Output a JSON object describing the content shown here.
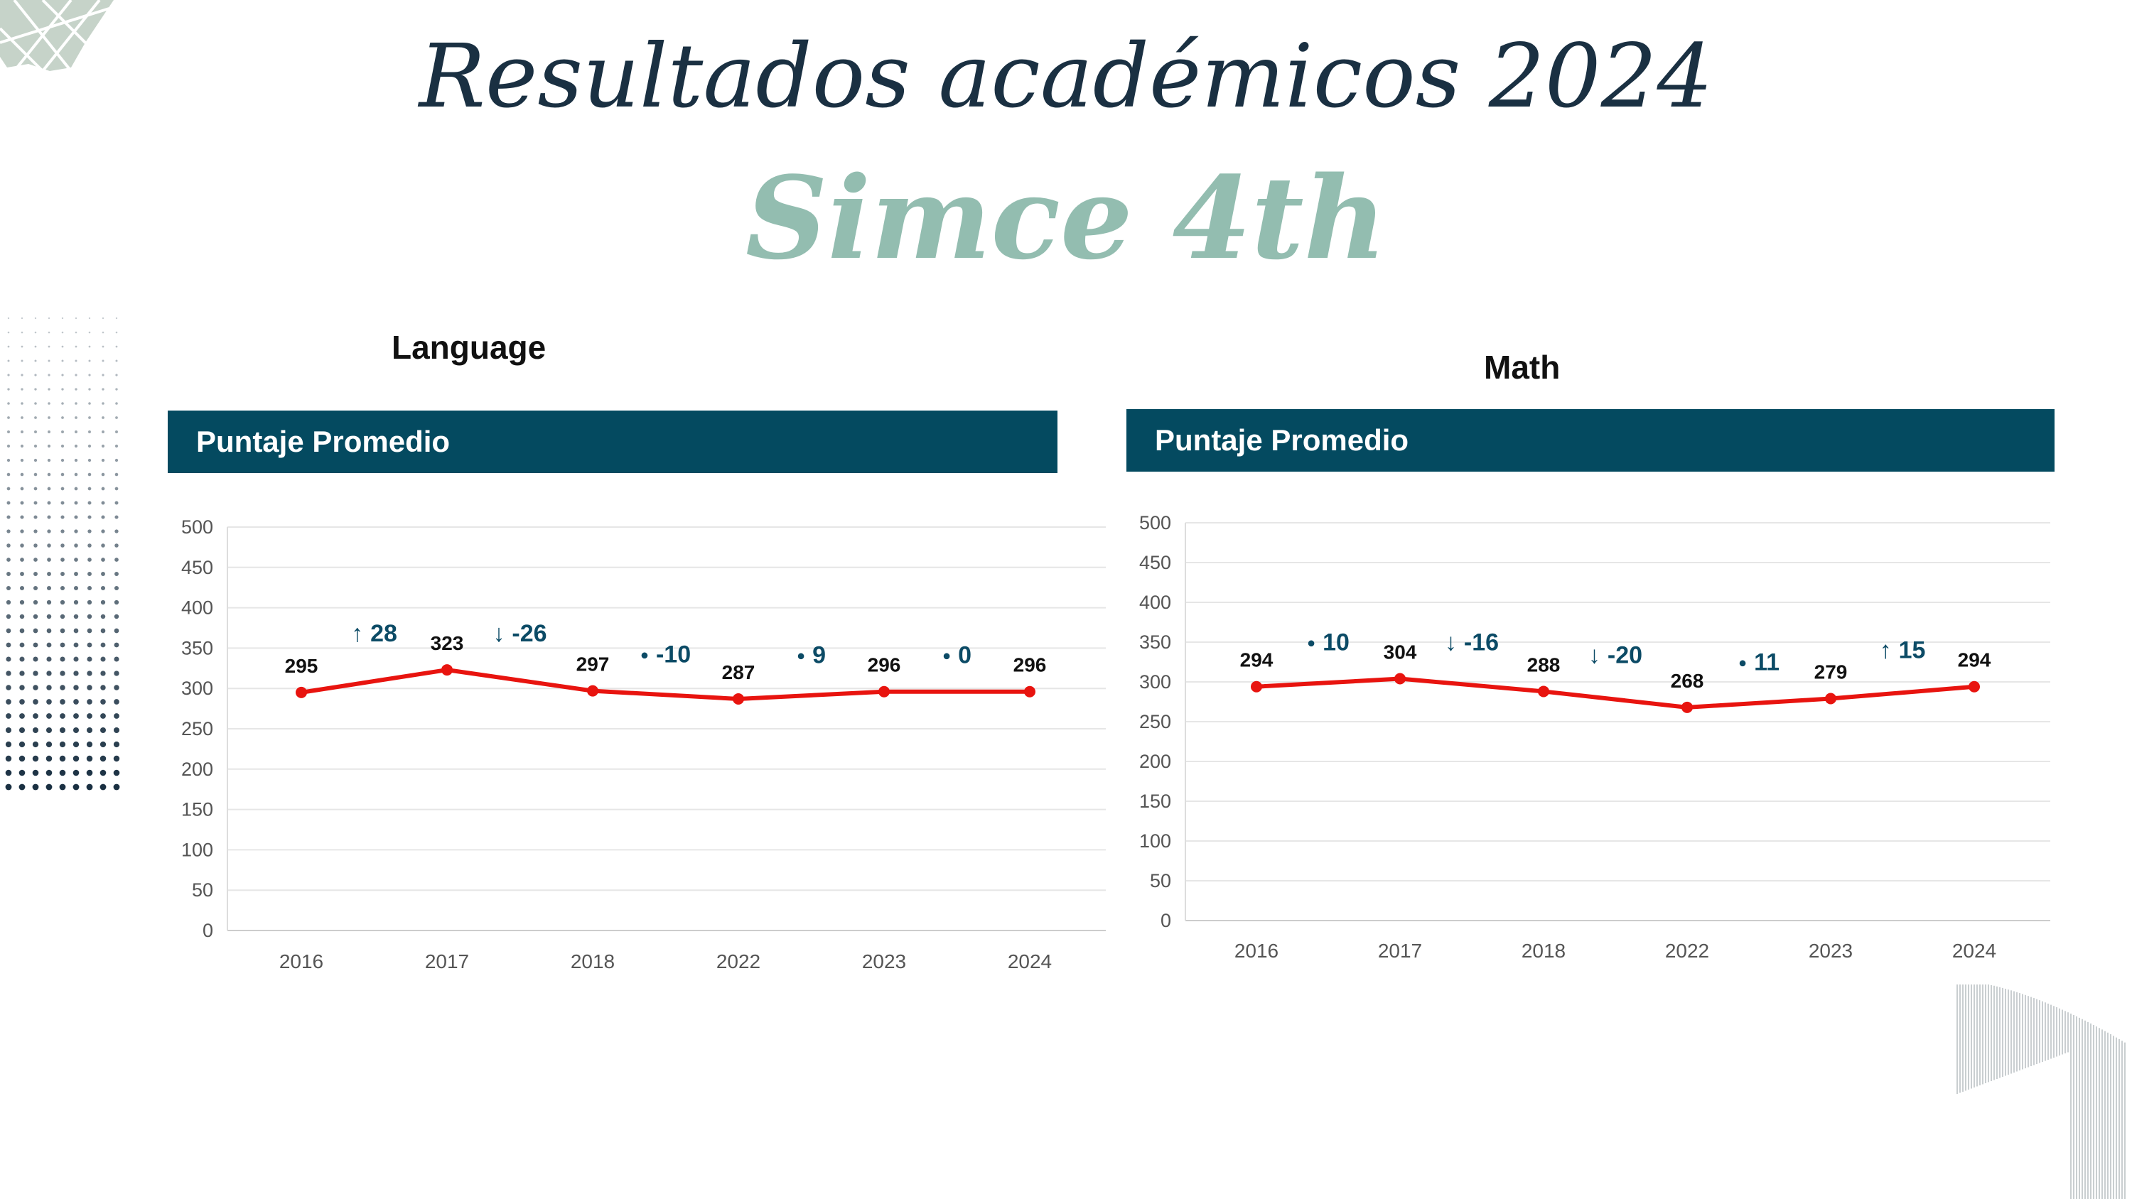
{
  "title": "Resultados académicos 2024",
  "subtitle": "Simce 4th",
  "colors": {
    "header_bg": "#044a60",
    "line": "#e8140f",
    "delta": "#0c4b66",
    "title": "#1a3042",
    "subtitle": "#93bdb0"
  },
  "chart_data": [
    {
      "type": "line",
      "label": "Language",
      "title": "Puntaje Promedio",
      "categories": [
        "2016",
        "2017",
        "2018",
        "2022",
        "2023",
        "2024"
      ],
      "values": [
        295,
        323,
        297,
        287,
        296,
        296
      ],
      "value_labels": [
        "295",
        "323",
        "297",
        "287",
        "296",
        "296"
      ],
      "changes": [
        {
          "icon": "arrow-up-icon",
          "glyph": "↑",
          "text": "28"
        },
        {
          "icon": "arrow-down-icon",
          "glyph": "↓",
          "text": "-26"
        },
        {
          "icon": "dot-icon",
          "glyph": "●",
          "text": "-10"
        },
        {
          "icon": "dot-icon",
          "glyph": "●",
          "text": "9"
        },
        {
          "icon": "dot-icon",
          "glyph": "●",
          "text": "0"
        }
      ],
      "yticks": [
        "0",
        "50",
        "100",
        "150",
        "200",
        "250",
        "300",
        "350",
        "400",
        "450",
        "500"
      ],
      "ylim": [
        0,
        500
      ],
      "grid": true,
      "legend": "none"
    },
    {
      "type": "line",
      "label": "Math",
      "title": "Puntaje Promedio",
      "categories": [
        "2016",
        "2017",
        "2018",
        "2022",
        "2023",
        "2024"
      ],
      "values": [
        294,
        304,
        288,
        268,
        279,
        294
      ],
      "value_labels": [
        "294",
        "304",
        "288",
        "268",
        "279",
        "294"
      ],
      "changes": [
        {
          "icon": "dot-icon",
          "glyph": "●",
          "text": "10"
        },
        {
          "icon": "arrow-down-icon",
          "glyph": "↓",
          "text": "-16"
        },
        {
          "icon": "arrow-down-icon",
          "glyph": "↓",
          "text": "-20"
        },
        {
          "icon": "dot-icon",
          "glyph": "●",
          "text": "11"
        },
        {
          "icon": "arrow-up-icon",
          "glyph": "↑",
          "text": "15"
        }
      ],
      "yticks": [
        "0",
        "50",
        "100",
        "150",
        "200",
        "250",
        "300",
        "350",
        "400",
        "450",
        "500"
      ],
      "ylim": [
        0,
        500
      ],
      "grid": true,
      "legend": "none"
    }
  ]
}
